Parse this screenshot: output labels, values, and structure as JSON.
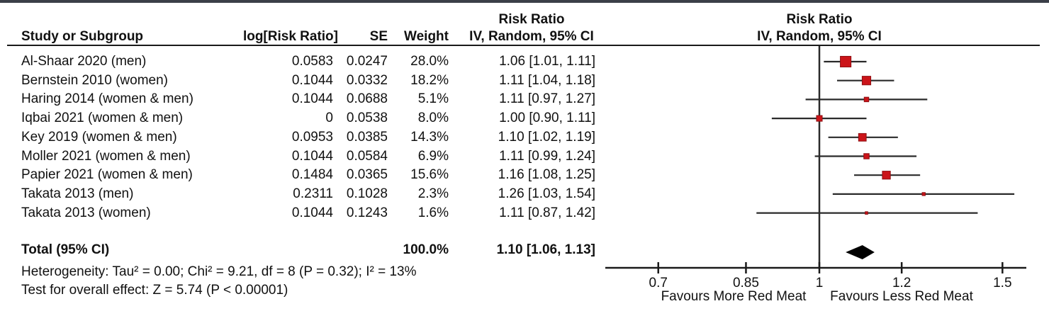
{
  "table": {
    "header": {
      "study": "Study or Subgroup",
      "log_rr": "log[Risk Ratio]",
      "se": "SE",
      "weight": "Weight",
      "effect_line1": "Risk Ratio",
      "effect_line2": "IV, Random, 95% CI"
    },
    "rows": [
      {
        "study": "Al-Shaar 2020 (men)",
        "log_rr": "0.0583",
        "se": "0.0247",
        "weight": "28.0%",
        "ci": "1.06 [1.01, 1.11]"
      },
      {
        "study": "Bernstein 2010 (women)",
        "log_rr": "0.1044",
        "se": "0.0332",
        "weight": "18.2%",
        "ci": "1.11 [1.04, 1.18]"
      },
      {
        "study": "Haring 2014 (women & men)",
        "log_rr": "0.1044",
        "se": "0.0688",
        "weight": "5.1%",
        "ci": "1.11 [0.97, 1.27]"
      },
      {
        "study": "Iqbai 2021 (women & men)",
        "log_rr": "0",
        "se": "0.0538",
        "weight": "8.0%",
        "ci": "1.00 [0.90, 1.11]"
      },
      {
        "study": "Key 2019 (women & men)",
        "log_rr": "0.0953",
        "se": "0.0385",
        "weight": "14.3%",
        "ci": "1.10 [1.02, 1.19]"
      },
      {
        "study": "Moller 2021 (women & men)",
        "log_rr": "0.1044",
        "se": "0.0584",
        "weight": "6.9%",
        "ci": "1.11 [0.99, 1.24]"
      },
      {
        "study": "Papier 2021 (women & men)",
        "log_rr": "0.1484",
        "se": "0.0365",
        "weight": "15.6%",
        "ci": "1.16 [1.08, 1.25]"
      },
      {
        "study": "Takata 2013 (men)",
        "log_rr": "0.2311",
        "se": "0.1028",
        "weight": "2.3%",
        "ci": "1.26 [1.03, 1.54]"
      },
      {
        "study": "Takata 2013 (women)",
        "log_rr": "0.1044",
        "se": "0.1243",
        "weight": "1.6%",
        "ci": "1.11 [0.87, 1.42]"
      }
    ],
    "total": {
      "label": "Total (95% CI)",
      "weight": "100.0%",
      "ci": "1.10 [1.06, 1.13]"
    }
  },
  "footnotes": {
    "heterogeneity": "Heterogeneity: Tau² = 0.00; Chi² = 9.21, df = 8 (P = 0.32); I² = 13%",
    "overall_effect": "Test for overall effect: Z = 5.74 (P < 0.00001)"
  },
  "plot": {
    "header_line1": "Risk Ratio",
    "header_line2": "IV, Random, 95% CI",
    "favours_left": "Favours More Red Meat",
    "favours_right": "Favours Less Red Meat",
    "axis_ticks": [
      {
        "label": "0.7",
        "value": 0.7
      },
      {
        "label": "0.85",
        "value": 0.85
      },
      {
        "label": "1",
        "value": 1
      },
      {
        "label": "1.2",
        "value": 1.2
      },
      {
        "label": "1.5",
        "value": 1.5
      }
    ]
  },
  "colors": {
    "marker_fill": "#cb1419",
    "marker_border": "#8e0e11",
    "ci_line": "#2a2a2a",
    "axis_line": "#1a1a1a",
    "diamond": "#000000",
    "top_border": "#3b3f48"
  },
  "chart_data": {
    "type": "forest",
    "effect_measure": "Risk Ratio",
    "model": "IV, Random, 95% CI",
    "x_scale": "log",
    "x_ticks": [
      0.7,
      0.85,
      1,
      1.2,
      1.5
    ],
    "xlabel_left": "Favours More Red Meat",
    "xlabel_right": "Favours Less Red Meat",
    "studies": [
      {
        "name": "Al-Shaar 2020 (men)",
        "log_rr": 0.0583,
        "se": 0.0247,
        "weight_pct": 28.0,
        "rr": 1.06,
        "ci_low": 1.01,
        "ci_high": 1.11
      },
      {
        "name": "Bernstein 2010 (women)",
        "log_rr": 0.1044,
        "se": 0.0332,
        "weight_pct": 18.2,
        "rr": 1.11,
        "ci_low": 1.04,
        "ci_high": 1.18
      },
      {
        "name": "Haring 2014 (women & men)",
        "log_rr": 0.1044,
        "se": 0.0688,
        "weight_pct": 5.1,
        "rr": 1.11,
        "ci_low": 0.97,
        "ci_high": 1.27
      },
      {
        "name": "Iqbai 2021 (women & men)",
        "log_rr": 0,
        "se": 0.0538,
        "weight_pct": 8.0,
        "rr": 1.0,
        "ci_low": 0.9,
        "ci_high": 1.11
      },
      {
        "name": "Key 2019 (women & men)",
        "log_rr": 0.0953,
        "se": 0.0385,
        "weight_pct": 14.3,
        "rr": 1.1,
        "ci_low": 1.02,
        "ci_high": 1.19
      },
      {
        "name": "Moller 2021 (women & men)",
        "log_rr": 0.1044,
        "se": 0.0584,
        "weight_pct": 6.9,
        "rr": 1.11,
        "ci_low": 0.99,
        "ci_high": 1.24
      },
      {
        "name": "Papier 2021 (women & men)",
        "log_rr": 0.1484,
        "se": 0.0365,
        "weight_pct": 15.6,
        "rr": 1.16,
        "ci_low": 1.08,
        "ci_high": 1.25
      },
      {
        "name": "Takata 2013 (men)",
        "log_rr": 0.2311,
        "se": 0.1028,
        "weight_pct": 2.3,
        "rr": 1.26,
        "ci_low": 1.03,
        "ci_high": 1.54
      },
      {
        "name": "Takata 2013 (women)",
        "log_rr": 0.1044,
        "se": 0.1243,
        "weight_pct": 1.6,
        "rr": 1.11,
        "ci_low": 0.87,
        "ci_high": 1.42
      }
    ],
    "total": {
      "name": "Total (95% CI)",
      "weight_pct": 100.0,
      "rr": 1.1,
      "ci_low": 1.06,
      "ci_high": 1.13
    },
    "heterogeneity": "Tau² = 0.00; Chi² = 9.21, df = 8 (P = 0.32); I² = 13%",
    "overall_effect_test": "Z = 5.74 (P < 0.00001)"
  }
}
